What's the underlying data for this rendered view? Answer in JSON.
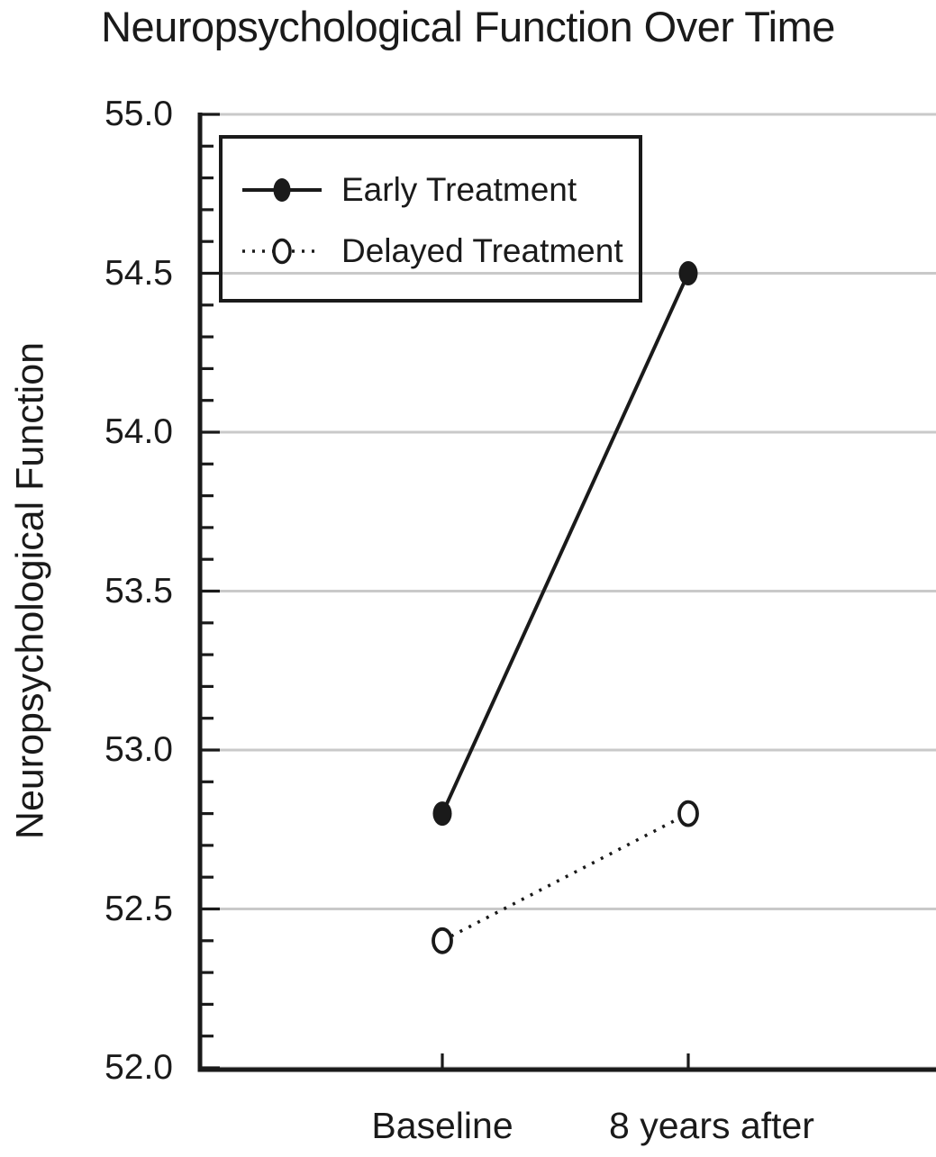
{
  "chart_data": {
    "type": "line",
    "title": "Neuropsychological Function Over Time",
    "ylabel": "Neuropsychological Function",
    "xlabel": "",
    "categories": [
      "Baseline",
      "8 years after"
    ],
    "series": [
      {
        "name": "Early Treatment",
        "values": [
          52.8,
          54.5
        ],
        "line_style": "solid",
        "marker": "filled-circle"
      },
      {
        "name": "Delayed Treatment",
        "values": [
          52.4,
          52.8
        ],
        "line_style": "dotted",
        "marker": "open-circle"
      }
    ],
    "ylim": [
      52.0,
      55.0
    ],
    "ytick_labels": [
      "55.0",
      "54.5",
      "54.0",
      "53.5",
      "53.0",
      "52.5",
      "52.0"
    ],
    "major_tick_step": 0.5,
    "minor_tick_step": 0.1,
    "grid": "horizontal-major-gridlines",
    "legend_position": "top-left",
    "colors": {
      "ink": "#1a1a1a",
      "grid": "#c9c9c9",
      "background": "#ffffff"
    }
  }
}
